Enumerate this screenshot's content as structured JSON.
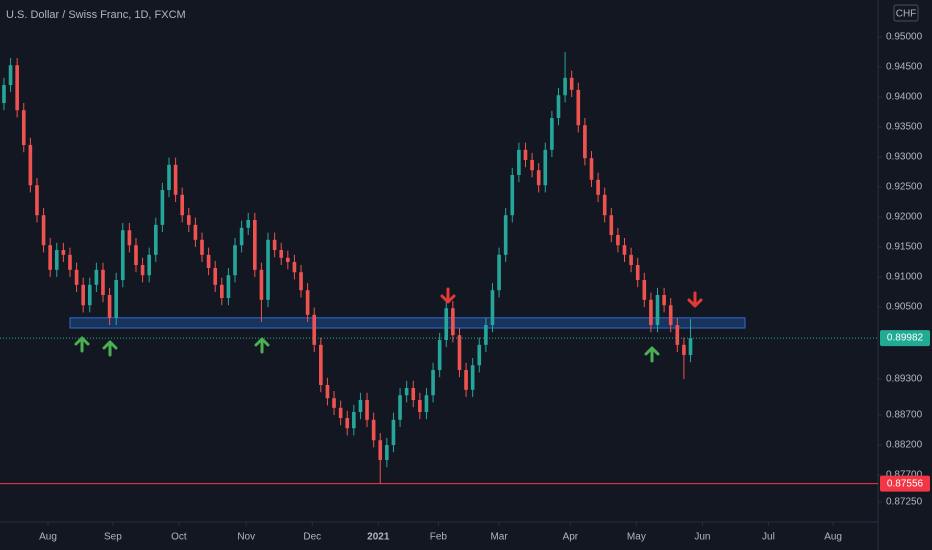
{
  "chart_data": {
    "type": "candlestick",
    "title": "U.S. Dollar / Swiss Franc, 1D, FXCM",
    "currency": "CHF",
    "open": [
      0.939,
      0.942,
      0.9453,
      0.9378,
      0.932,
      0.9253,
      0.9203,
      0.9153,
      0.9112,
      0.9145,
      0.9137,
      0.9112,
      0.9087,
      0.9053,
      0.9087,
      0.9112,
      0.907,
      0.9032,
      0.9095,
      0.9178,
      0.9153,
      0.912,
      0.9103,
      0.9137,
      0.9187,
      0.9245,
      0.9287,
      0.9237,
      0.9203,
      0.9187,
      0.9162,
      0.9137,
      0.9115,
      0.9087,
      0.9065,
      0.9103,
      0.9153,
      0.9182,
      0.9195,
      0.9112,
      0.9062,
      0.9162,
      0.9145,
      0.9132,
      0.9125,
      0.9108,
      0.9078,
      0.9037,
      0.8987,
      0.892,
      0.8898,
      0.8882,
      0.8865,
      0.8848,
      0.8875,
      0.8895,
      0.8862,
      0.8828,
      0.8795,
      0.882,
      0.8862,
      0.8903,
      0.8915,
      0.8895,
      0.8875,
      0.8903,
      0.8945,
      0.8995,
      0.9048,
      0.9003,
      0.8945,
      0.8912,
      0.8953,
      0.8987,
      0.902,
      0.9078,
      0.9137,
      0.9203,
      0.927,
      0.9312,
      0.9295,
      0.9278,
      0.9253,
      0.9312,
      0.9365,
      0.9403,
      0.9432,
      0.9412,
      0.9353,
      0.9298,
      0.9262,
      0.9237,
      0.9203,
      0.917,
      0.9153,
      0.9137,
      0.912,
      0.9095,
      0.9062,
      0.902,
      0.907,
      0.9053,
      0.902,
      0.8987,
      0.897
    ],
    "high": [
      0.9432,
      0.9465,
      0.9465,
      0.939,
      0.9332,
      0.9265,
      0.9215,
      0.9165,
      0.9157,
      0.9157,
      0.9149,
      0.9124,
      0.9099,
      0.9099,
      0.9124,
      0.9124,
      0.9082,
      0.9107,
      0.919,
      0.919,
      0.9165,
      0.9132,
      0.9149,
      0.9199,
      0.9257,
      0.9299,
      0.9299,
      0.9249,
      0.9215,
      0.9199,
      0.9174,
      0.9149,
      0.9127,
      0.9099,
      0.9115,
      0.9165,
      0.9194,
      0.9207,
      0.9207,
      0.9124,
      0.9174,
      0.9174,
      0.9157,
      0.9144,
      0.9137,
      0.912,
      0.909,
      0.9049,
      0.8999,
      0.8932,
      0.891,
      0.8894,
      0.8877,
      0.8887,
      0.8907,
      0.8907,
      0.8874,
      0.884,
      0.8832,
      0.8874,
      0.8915,
      0.8927,
      0.8927,
      0.8907,
      0.8915,
      0.8957,
      0.9007,
      0.9062,
      0.906,
      0.9015,
      0.8957,
      0.8965,
      0.8999,
      0.9032,
      0.909,
      0.9149,
      0.9215,
      0.9282,
      0.9324,
      0.9324,
      0.9307,
      0.929,
      0.9324,
      0.9377,
      0.9415,
      0.9475,
      0.9444,
      0.9424,
      0.9365,
      0.931,
      0.9274,
      0.9249,
      0.9215,
      0.9182,
      0.9165,
      0.9149,
      0.9132,
      0.9107,
      0.9074,
      0.9082,
      0.9082,
      0.9065,
      0.9032,
      0.8999,
      0.903
    ],
    "low": [
      0.9378,
      0.9408,
      0.9366,
      0.9308,
      0.9241,
      0.9191,
      0.9141,
      0.91,
      0.91,
      0.9125,
      0.91,
      0.9075,
      0.9041,
      0.9041,
      0.9075,
      0.9058,
      0.902,
      0.902,
      0.9083,
      0.9141,
      0.9108,
      0.9091,
      0.9091,
      0.9125,
      0.9175,
      0.9233,
      0.9225,
      0.9191,
      0.9175,
      0.915,
      0.9125,
      0.9103,
      0.9075,
      0.9053,
      0.9053,
      0.9091,
      0.9141,
      0.917,
      0.91,
      0.9025,
      0.905,
      0.9133,
      0.912,
      0.9113,
      0.9096,
      0.9066,
      0.9025,
      0.8975,
      0.8908,
      0.8886,
      0.887,
      0.8853,
      0.8836,
      0.8836,
      0.8863,
      0.885,
      0.8816,
      0.8756,
      0.8783,
      0.8808,
      0.885,
      0.8891,
      0.8883,
      0.8863,
      0.8863,
      0.8891,
      0.8933,
      0.8983,
      0.8991,
      0.8933,
      0.89,
      0.89,
      0.8941,
      0.8975,
      0.9008,
      0.9066,
      0.9125,
      0.9191,
      0.9258,
      0.9283,
      0.9266,
      0.9241,
      0.9241,
      0.93,
      0.9353,
      0.9391,
      0.94,
      0.9341,
      0.9286,
      0.925,
      0.9225,
      0.9191,
      0.9158,
      0.9141,
      0.9125,
      0.9108,
      0.9083,
      0.905,
      0.9008,
      0.9008,
      0.9041,
      0.9008,
      0.8975,
      0.893,
      0.8958
    ],
    "close": [
      0.942,
      0.9453,
      0.9378,
      0.932,
      0.9253,
      0.9203,
      0.9153,
      0.9112,
      0.9145,
      0.9137,
      0.9112,
      0.9087,
      0.9053,
      0.9087,
      0.9112,
      0.907,
      0.9032,
      0.9095,
      0.9178,
      0.9153,
      0.912,
      0.9103,
      0.9137,
      0.9187,
      0.9245,
      0.9287,
      0.9237,
      0.9203,
      0.9187,
      0.9162,
      0.9137,
      0.9115,
      0.9087,
      0.9065,
      0.9103,
      0.9153,
      0.9182,
      0.9195,
      0.9112,
      0.9062,
      0.9162,
      0.9145,
      0.9132,
      0.9125,
      0.9108,
      0.9078,
      0.9037,
      0.8987,
      0.892,
      0.8898,
      0.8882,
      0.8865,
      0.8848,
      0.8875,
      0.8895,
      0.8862,
      0.8828,
      0.8795,
      0.882,
      0.8862,
      0.8903,
      0.8915,
      0.8895,
      0.8875,
      0.8903,
      0.8945,
      0.8995,
      0.9048,
      0.9003,
      0.8945,
      0.8912,
      0.8953,
      0.8987,
      0.902,
      0.9078,
      0.9137,
      0.9203,
      0.927,
      0.9312,
      0.9295,
      0.9278,
      0.9253,
      0.9312,
      0.9365,
      0.9403,
      0.9432,
      0.9412,
      0.9353,
      0.9298,
      0.9262,
      0.9237,
      0.9203,
      0.917,
      0.9153,
      0.9137,
      0.912,
      0.9095,
      0.9062,
      0.902,
      0.907,
      0.9053,
      0.902,
      0.8987,
      0.897,
      0.89982
    ],
    "up_color": "#26a69a",
    "down_color": "#ef5350",
    "xlim": [
      -0.6,
      132.4
    ],
    "xticks": [
      {
        "value": 6.67,
        "label": "Aug"
      },
      {
        "value": 16.5,
        "label": "Sep"
      },
      {
        "value": 26.5,
        "label": "Oct"
      },
      {
        "value": 36.7,
        "label": "Nov"
      },
      {
        "value": 46.7,
        "label": "Dec"
      },
      {
        "value": 56.7,
        "label": "2021"
      },
      {
        "value": 65.8,
        "label": "Feb"
      },
      {
        "value": 75,
        "label": "Mar"
      },
      {
        "value": 85.8,
        "label": "Apr"
      },
      {
        "value": 95.8,
        "label": "May"
      },
      {
        "value": 105.8,
        "label": "Jun"
      },
      {
        "value": 115.8,
        "label": "Jul"
      },
      {
        "value": 125.6,
        "label": "Aug"
      }
    ],
    "ylim": [
      0.86917,
      0.95617
    ],
    "yticks": [
      {
        "value": 0.95,
        "label": "0.95000"
      },
      {
        "value": 0.945,
        "label": "0.94500"
      },
      {
        "value": 0.94,
        "label": "0.94000"
      },
      {
        "value": 0.935,
        "label": "0.93500"
      },
      {
        "value": 0.93,
        "label": "0.93000"
      },
      {
        "value": 0.925,
        "label": "0.92500"
      },
      {
        "value": 0.92,
        "label": "0.92000"
      },
      {
        "value": 0.915,
        "label": "0.91500"
      },
      {
        "value": 0.91,
        "label": "0.91000"
      },
      {
        "value": 0.905,
        "label": "0.90500"
      },
      {
        "value": 0.893,
        "label": "0.89300"
      },
      {
        "value": 0.887,
        "label": "0.88700"
      },
      {
        "value": 0.882,
        "label": "0.88200"
      },
      {
        "value": 0.877,
        "label": "0.87700"
      },
      {
        "value": 0.8725,
        "label": "0.87250"
      }
    ],
    "zone": [
      0.9015,
      0.9032
    ],
    "zone_color": "#1e4a8c",
    "last_price": 0.89982,
    "last_price_color": "#22ab94",
    "level": 0.87556,
    "level_color": "#f23645",
    "grid": false
  }
}
